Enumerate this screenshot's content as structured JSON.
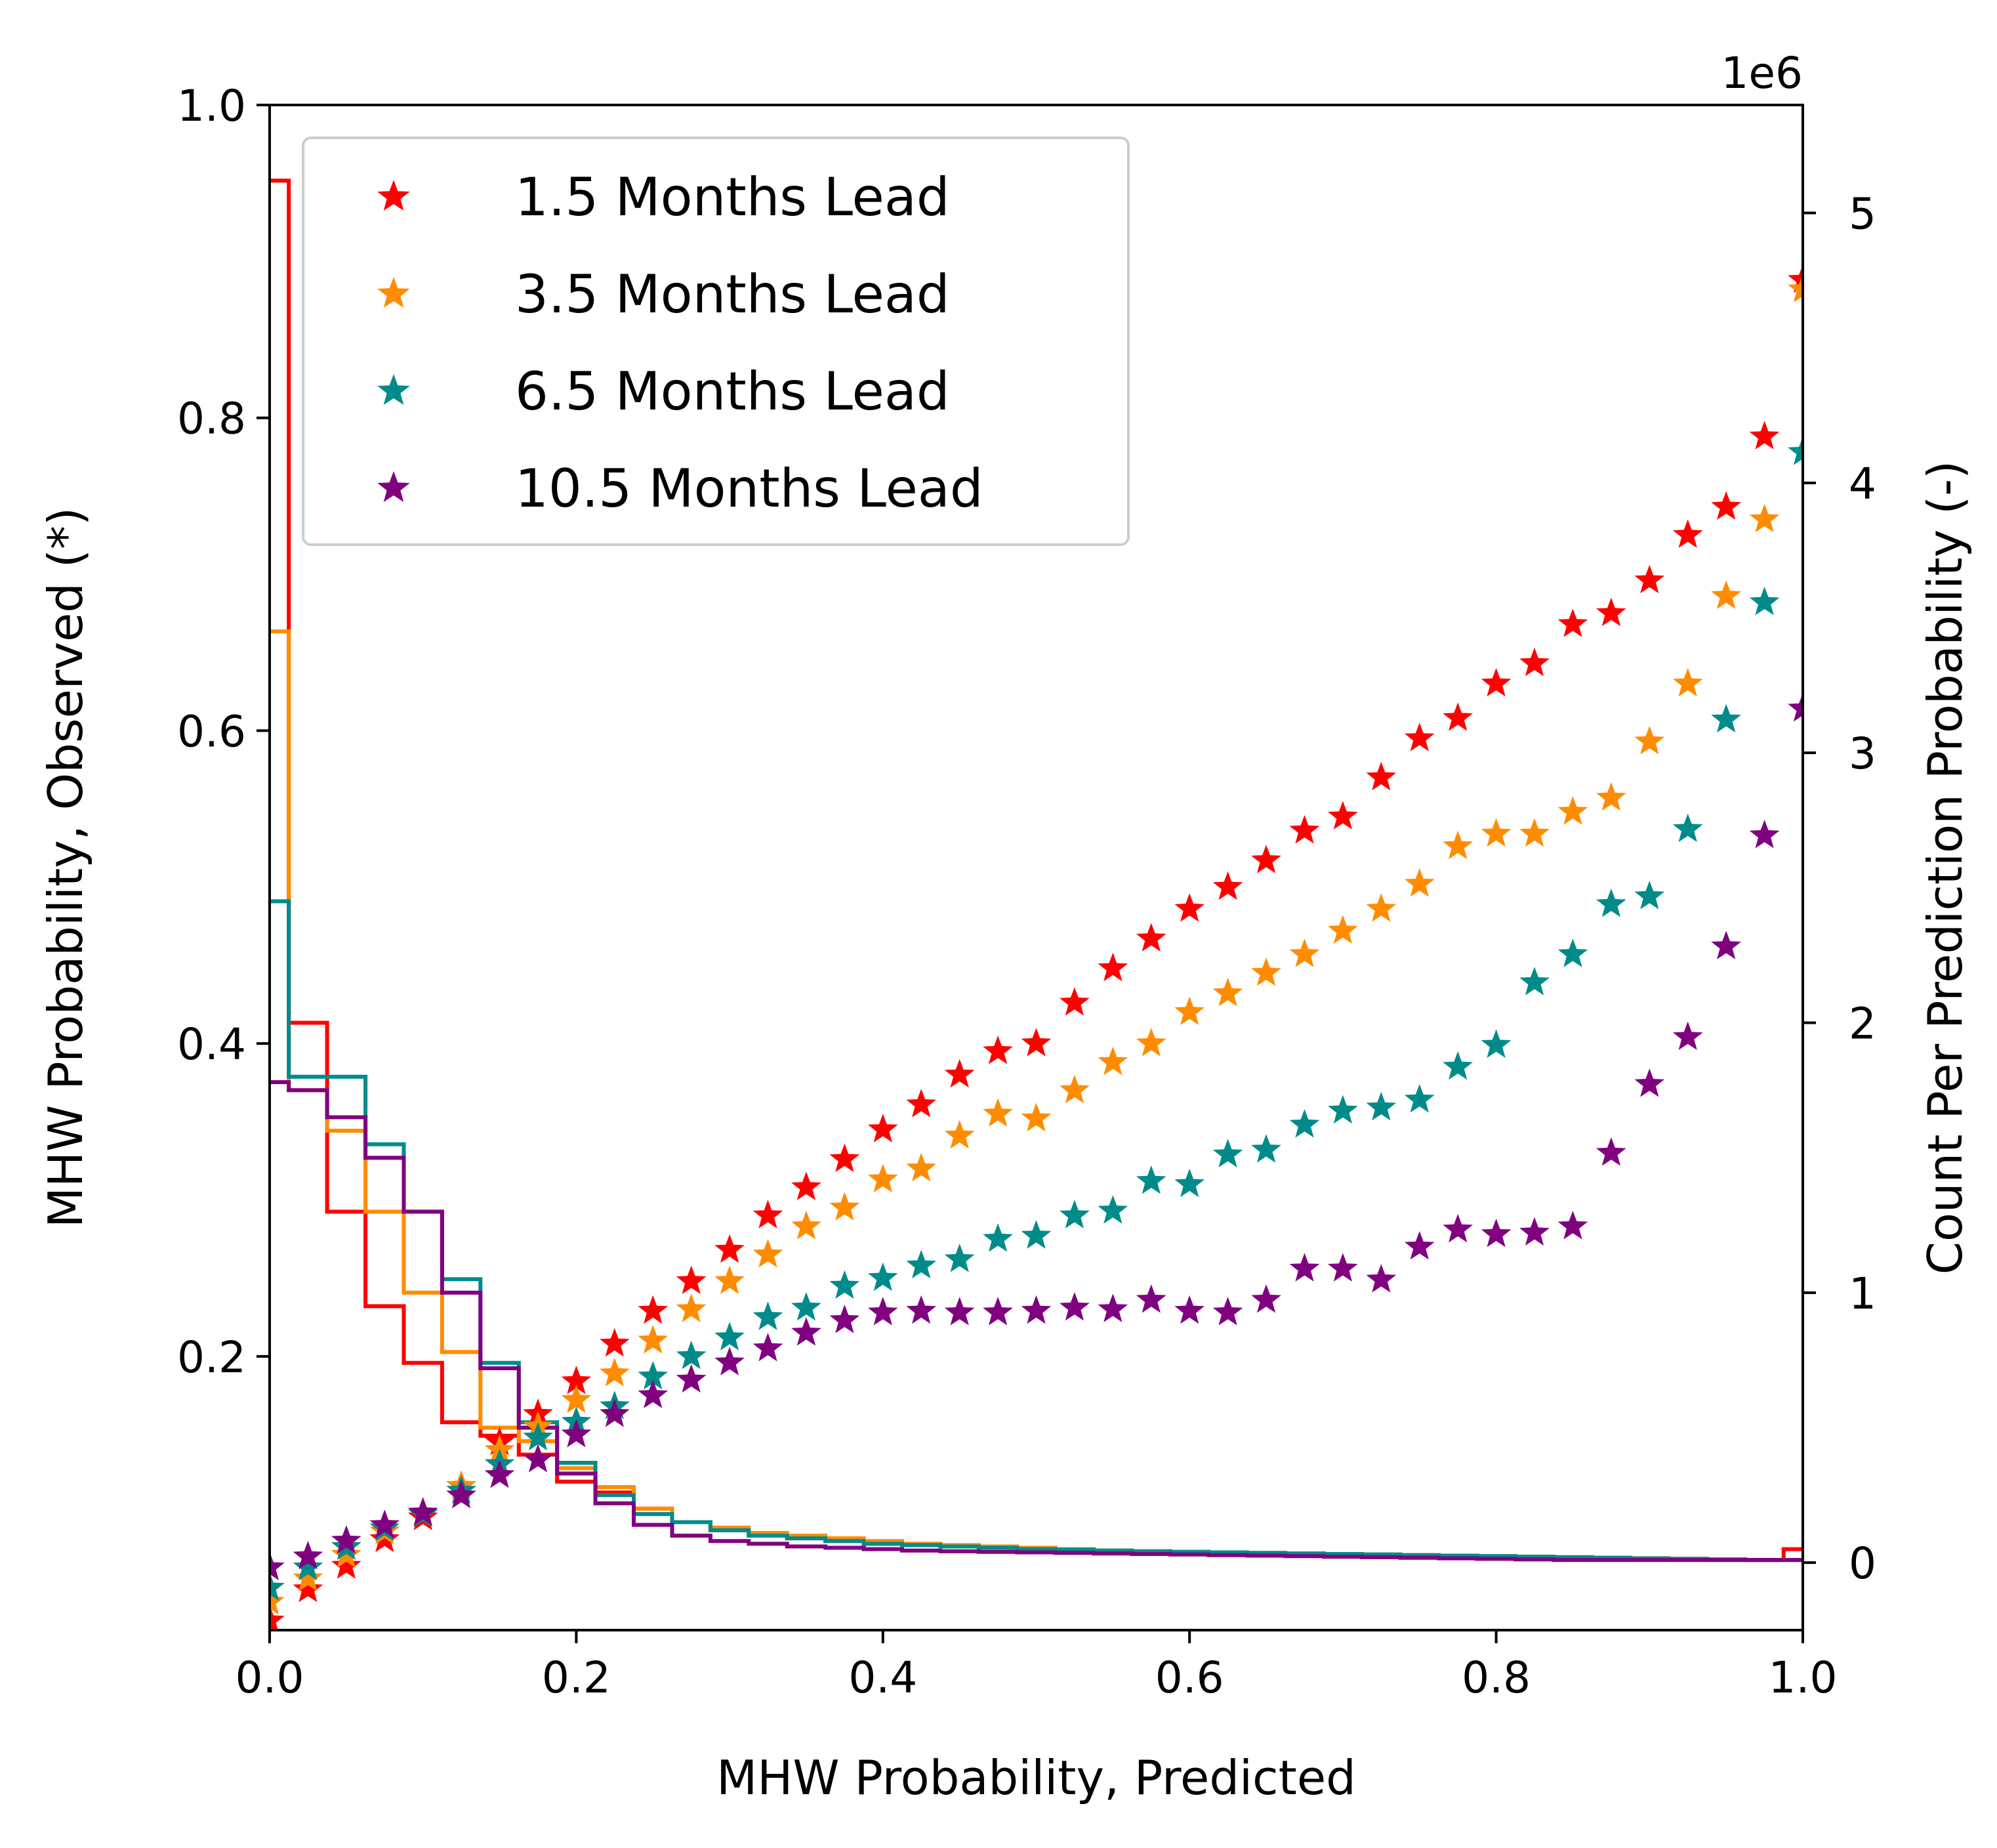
{
  "chart_data": {
    "type": "scatter",
    "xlabel": "MHW Probability, Predicted",
    "ylabel": "MHW Probability, Observed (*)",
    "y2label": "Count Per Prediction Probability (-)",
    "y2_multiplier_label": "1e6",
    "xlim": [
      0.0,
      1.0
    ],
    "ylim": [
      0.025,
      1.0
    ],
    "y2lim": [
      -0.25,
      5.4
    ],
    "x_ticks": [
      "0.0",
      "0.2",
      "0.4",
      "0.6",
      "0.8",
      "1.0"
    ],
    "y_ticks": [
      "0.2",
      "0.4",
      "0.6",
      "0.8",
      "1.0"
    ],
    "y2_ticks": [
      "0",
      "1",
      "2",
      "3",
      "4",
      "5"
    ],
    "legend_position": "upper-left",
    "grid": false,
    "x": [
      0.0,
      0.025,
      0.05,
      0.075,
      0.1,
      0.125,
      0.15,
      0.175,
      0.2,
      0.225,
      0.25,
      0.275,
      0.3,
      0.325,
      0.35,
      0.375,
      0.4,
      0.425,
      0.45,
      0.475,
      0.5,
      0.525,
      0.55,
      0.575,
      0.6,
      0.625,
      0.65,
      0.675,
      0.7,
      0.725,
      0.75,
      0.775,
      0.8,
      0.825,
      0.85,
      0.875,
      0.9,
      0.925,
      0.95,
      0.975,
      1.0
    ],
    "series": [
      {
        "name": "1.5 Months Lead",
        "color": "#ff0000",
        "values": [
          0.031,
          0.051,
          0.066,
          0.083,
          0.097,
          0.117,
          0.145,
          0.163,
          0.184,
          0.208,
          0.229,
          0.248,
          0.268,
          0.29,
          0.308,
          0.326,
          0.345,
          0.361,
          0.38,
          0.395,
          0.4,
          0.426,
          0.448,
          0.467,
          0.486,
          0.5,
          0.517,
          0.536,
          0.545,
          0.57,
          0.595,
          0.608,
          0.63,
          0.643,
          0.668,
          0.675,
          0.696,
          0.725,
          0.743,
          0.788,
          0.888
        ],
        "hist": [
          5.12,
          2.0,
          1.3,
          0.95,
          0.74,
          0.52,
          0.47,
          0.4,
          0.3,
          0.26,
          0.2,
          0.15,
          0.12,
          0.1,
          0.09,
          0.08,
          0.07,
          0.065,
          0.06,
          0.055,
          0.05,
          0.048,
          0.045,
          0.042,
          0.04,
          0.038,
          0.036,
          0.034,
          0.032,
          0.03,
          0.028,
          0.026,
          0.024,
          0.022,
          0.02,
          0.018,
          0.016,
          0.014,
          0.012,
          0.01,
          0.05
        ]
      },
      {
        "name": "3.5 Months Lead",
        "color": "#ff8c00",
        "values": [
          0.043,
          0.058,
          0.073,
          0.088,
          0.1,
          0.117,
          0.14,
          0.155,
          0.172,
          0.189,
          0.21,
          0.23,
          0.248,
          0.265,
          0.283,
          0.295,
          0.313,
          0.32,
          0.341,
          0.355,
          0.352,
          0.37,
          0.388,
          0.4,
          0.42,
          0.432,
          0.445,
          0.457,
          0.472,
          0.486,
          0.502,
          0.526,
          0.534,
          0.534,
          0.548,
          0.557,
          0.593,
          0.63,
          0.686,
          0.735,
          0.882
        ],
        "hist": [
          3.45,
          1.75,
          1.6,
          1.3,
          1.0,
          0.78,
          0.5,
          0.45,
          0.35,
          0.28,
          0.2,
          0.15,
          0.13,
          0.11,
          0.1,
          0.09,
          0.08,
          0.07,
          0.065,
          0.06,
          0.055,
          0.05,
          0.045,
          0.042,
          0.04,
          0.038,
          0.035,
          0.032,
          0.03,
          0.028,
          0.026,
          0.024,
          0.022,
          0.02,
          0.018,
          0.016,
          0.014,
          0.012,
          0.01,
          0.01,
          0.01
        ]
      },
      {
        "name": "6.5 Months Lead",
        "color": "#008b8b",
        "values": [
          0.052,
          0.065,
          0.078,
          0.09,
          0.099,
          0.114,
          0.131,
          0.148,
          0.158,
          0.168,
          0.187,
          0.2,
          0.212,
          0.225,
          0.231,
          0.245,
          0.25,
          0.258,
          0.262,
          0.275,
          0.277,
          0.29,
          0.293,
          0.312,
          0.31,
          0.329,
          0.332,
          0.348,
          0.357,
          0.359,
          0.364,
          0.385,
          0.399,
          0.439,
          0.457,
          0.489,
          0.494,
          0.537,
          0.607,
          0.682,
          0.778
        ],
        "hist": [
          2.45,
          1.8,
          1.8,
          1.55,
          1.3,
          1.05,
          0.74,
          0.52,
          0.37,
          0.25,
          0.18,
          0.15,
          0.12,
          0.1,
          0.09,
          0.08,
          0.07,
          0.065,
          0.06,
          0.055,
          0.05,
          0.048,
          0.045,
          0.042,
          0.04,
          0.038,
          0.036,
          0.034,
          0.032,
          0.03,
          0.028,
          0.026,
          0.024,
          0.022,
          0.02,
          0.018,
          0.016,
          0.014,
          0.012,
          0.01,
          0.01
        ]
      },
      {
        "name": "10.5 Months Lead",
        "color": "#800080",
        "values": [
          0.065,
          0.072,
          0.082,
          0.092,
          0.1,
          0.111,
          0.124,
          0.134,
          0.15,
          0.163,
          0.175,
          0.185,
          0.196,
          0.205,
          0.215,
          0.223,
          0.228,
          0.229,
          0.228,
          0.228,
          0.229,
          0.231,
          0.23,
          0.236,
          0.229,
          0.228,
          0.236,
          0.256,
          0.256,
          0.249,
          0.27,
          0.281,
          0.278,
          0.279,
          0.283,
          0.33,
          0.374,
          0.404,
          0.462,
          0.533,
          0.614
        ],
        "hist": [
          1.78,
          1.75,
          1.65,
          1.5,
          1.3,
          1.0,
          0.72,
          0.5,
          0.33,
          0.22,
          0.14,
          0.1,
          0.08,
          0.07,
          0.06,
          0.055,
          0.05,
          0.045,
          0.042,
          0.04,
          0.038,
          0.036,
          0.034,
          0.032,
          0.03,
          0.028,
          0.026,
          0.024,
          0.022,
          0.02,
          0.018,
          0.016,
          0.014,
          0.012,
          0.01,
          0.01,
          0.01,
          0.01,
          0.01,
          0.01,
          0.01
        ]
      }
    ]
  }
}
